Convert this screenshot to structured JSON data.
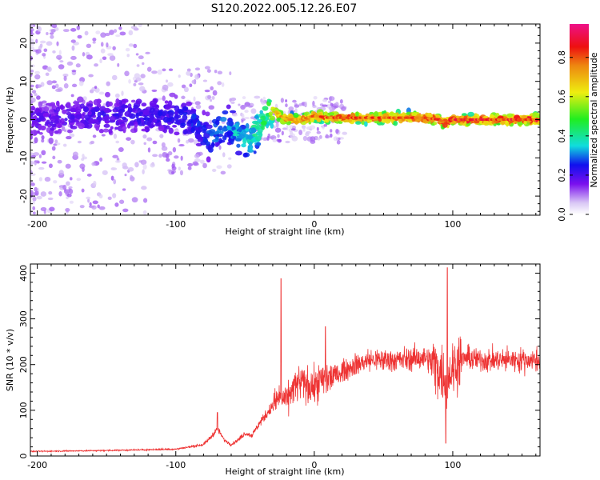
{
  "title": "S120.2022.005.12.26.E07",
  "colorbar": {
    "label": "Normalized spectral amplitude",
    "ticks": [
      "0.0",
      "0.2",
      "0.4",
      "0.6",
      "0.8"
    ],
    "tick_values": [
      0.0,
      0.2,
      0.4,
      0.6,
      0.8
    ],
    "range": [
      0,
      0.97
    ]
  },
  "chart_data": [
    {
      "type": "heatmap",
      "title": "S120.2022.005.12.26.E07",
      "xlabel": "Height of straight line (km)",
      "ylabel": "Frequency (Hz)",
      "xlim": [
        -205,
        163
      ],
      "ylim": [
        -25,
        25
      ],
      "xticks": [
        -200,
        -100,
        0,
        100
      ],
      "xtick_labels": [
        "-200",
        "-100",
        "0",
        "100"
      ],
      "yticks": [
        -20,
        -10,
        0,
        10,
        20
      ],
      "ytick_labels": [
        "-20",
        "-10",
        "0",
        "10",
        "20"
      ],
      "ridge": {
        "x": [
          -200,
          -180,
          -160,
          -140,
          -120,
          -100,
          -90,
          -80,
          -75,
          -70,
          -65,
          -60,
          -55,
          -50,
          -45,
          -40,
          -35,
          -30,
          -25,
          -20,
          -10,
          0,
          10,
          20,
          40,
          60,
          80,
          90,
          95,
          100,
          120,
          140,
          160
        ],
        "frequency_hz": [
          0,
          0.5,
          1,
          1.5,
          1,
          1,
          0,
          -3,
          -5,
          -3,
          -1,
          -2,
          -4,
          -6,
          -5,
          -2,
          2,
          3,
          1,
          0,
          0,
          1,
          0.5,
          0.5,
          0.5,
          0.5,
          0.5,
          0,
          -1,
          0,
          0,
          0,
          0
        ]
      },
      "ridge_amplitude": {
        "x": [
          -200,
          -100,
          -60,
          -35,
          -25,
          0,
          50,
          100,
          160
        ],
        "value": [
          0.2,
          0.25,
          0.35,
          0.5,
          0.75,
          0.85,
          0.85,
          0.9,
          0.9
        ]
      }
    },
    {
      "type": "line",
      "xlabel": "Height of straight line (km)",
      "ylabel": "SNR (10 * v/v)",
      "xlim": [
        -205,
        163
      ],
      "ylim": [
        0,
        420
      ],
      "xticks": [
        -200,
        -100,
        0,
        100
      ],
      "xtick_labels": [
        "-200",
        "-100",
        "0",
        "100"
      ],
      "yticks": [
        0,
        100,
        200,
        300,
        400
      ],
      "ytick_labels": [
        "0",
        "100",
        "200",
        "300",
        "400"
      ],
      "color": "#ee3333",
      "x": [
        -205,
        -150,
        -100,
        -80,
        -75,
        -70,
        -65,
        -60,
        -55,
        -50,
        -45,
        -40,
        -35,
        -30,
        -25,
        -20,
        -15,
        -10,
        -5,
        0,
        5,
        10,
        15,
        20,
        30,
        40,
        60,
        80,
        85,
        90,
        95,
        100,
        105,
        110,
        120,
        140,
        163
      ],
      "y": [
        10,
        12,
        15,
        25,
        40,
        60,
        35,
        25,
        35,
        50,
        45,
        70,
        90,
        110,
        130,
        120,
        150,
        160,
        155,
        150,
        165,
        170,
        175,
        185,
        200,
        210,
        210,
        215,
        205,
        190,
        170,
        190,
        210,
        215,
        210,
        210,
        210
      ],
      "spikes": [
        {
          "x": -70,
          "y": 95
        },
        {
          "x": -24,
          "y": 388
        },
        {
          "x": 8,
          "y": 283
        },
        {
          "x": 96,
          "y": 412
        },
        {
          "x": 95,
          "y": 28
        }
      ]
    }
  ]
}
